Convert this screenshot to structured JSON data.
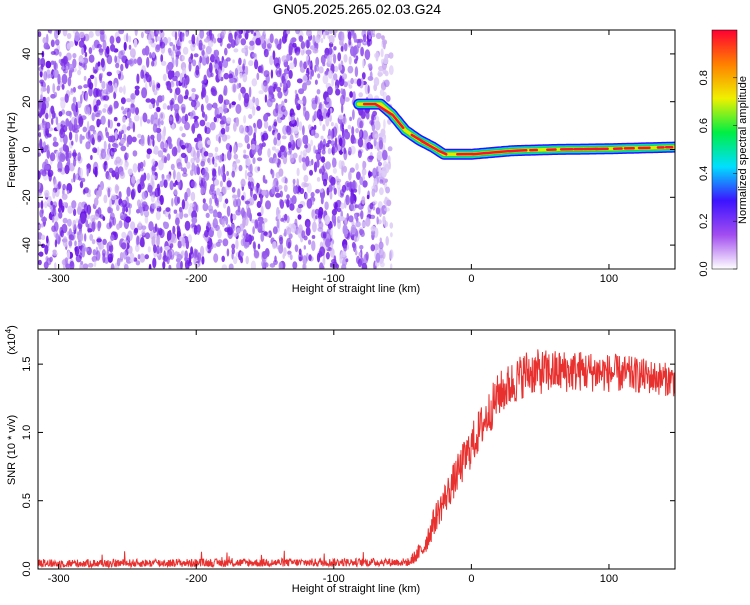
{
  "page": {
    "title": "GN05.2025.265.02.03.G24"
  },
  "colors": {
    "snr_line": "#e8302e",
    "spec_base": "#7a2ee6",
    "spec_light": "#c9a8f0"
  },
  "chart_data": [
    {
      "type": "heatmap",
      "name": "spectrogram",
      "xlabel": "Height of straight line (km)",
      "ylabel": "Frequency (Hz)",
      "xlim": [
        -315,
        148
      ],
      "ylim": [
        -50,
        50
      ],
      "xticks": [
        -300,
        -200,
        -100,
        0,
        100
      ],
      "xtick_labels": [
        "-300",
        "-200",
        "-100",
        "0",
        "100"
      ],
      "yticks": [
        -40,
        -20,
        0,
        20,
        40
      ],
      "ytick_labels": [
        "-40",
        "-20",
        "0",
        "20",
        "40"
      ],
      "noise_region_x": [
        -315,
        -58
      ],
      "signal_path": [
        {
          "x": -82,
          "y": 19
        },
        {
          "x": -66,
          "y": 19
        },
        {
          "x": -58,
          "y": 15
        },
        {
          "x": -48,
          "y": 8
        },
        {
          "x": -38,
          "y": 4
        },
        {
          "x": -28,
          "y": 1
        },
        {
          "x": -20,
          "y": -2
        },
        {
          "x": 0,
          "y": -2
        },
        {
          "x": 30,
          "y": -0.5
        },
        {
          "x": 60,
          "y": 0
        },
        {
          "x": 100,
          "y": 0.3
        },
        {
          "x": 148,
          "y": 1
        }
      ],
      "colorbar": {
        "label": "Normalized spectral amplitude",
        "range": [
          0,
          1
        ],
        "ticks": [
          0,
          0.2,
          0.4,
          0.6,
          0.8
        ],
        "tick_labels": [
          "0.0",
          "0.2",
          "0.4",
          "0.6",
          "0.8"
        ],
        "colors": [
          "#ffffff",
          "#a24df0",
          "#3c14ff",
          "#00dfff",
          "#00ee44",
          "#f0f000",
          "#ff8000",
          "#ff0033"
        ]
      }
    },
    {
      "type": "line",
      "name": "snr",
      "xlabel": "Height of straight line (km)",
      "ylabel": "SNR (10 * v/v)",
      "scale_label": "(x10",
      "scale_exp": "4",
      "scale_close": ")",
      "xlim": [
        -315,
        148
      ],
      "ylim": [
        0,
        1.75
      ],
      "xticks": [
        -300,
        -200,
        -100,
        0,
        100
      ],
      "xtick_labels": [
        "-300",
        "-200",
        "-100",
        "0",
        "100"
      ],
      "yticks": [
        0,
        0.5,
        1.0,
        1.5
      ],
      "ytick_labels": [
        "0.0",
        "0.5",
        "1.0",
        "1.5"
      ],
      "trend": [
        {
          "x": -315,
          "y": 0.04
        },
        {
          "x": -45,
          "y": 0.05
        },
        {
          "x": -35,
          "y": 0.15
        },
        {
          "x": -25,
          "y": 0.4
        },
        {
          "x": -10,
          "y": 0.7
        },
        {
          "x": 5,
          "y": 1.0
        },
        {
          "x": 20,
          "y": 1.28
        },
        {
          "x": 40,
          "y": 1.44
        },
        {
          "x": 80,
          "y": 1.45
        },
        {
          "x": 120,
          "y": 1.42
        },
        {
          "x": 148,
          "y": 1.38
        }
      ],
      "noise_amplitude": [
        {
          "x": -315,
          "y": 0.03
        },
        {
          "x": -45,
          "y": 0.03
        },
        {
          "x": -30,
          "y": 0.1
        },
        {
          "x": 0,
          "y": 0.16
        },
        {
          "x": 40,
          "y": 0.17
        },
        {
          "x": 148,
          "y": 0.12
        }
      ]
    }
  ]
}
